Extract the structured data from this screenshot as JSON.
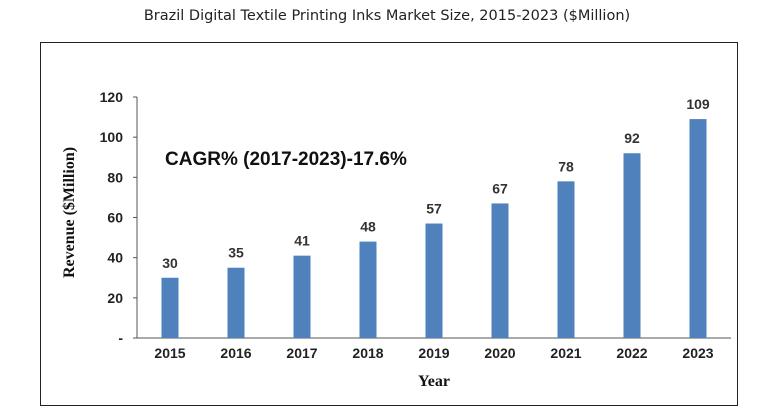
{
  "page": {
    "title": "Brazil Digital Textile Printing Inks Market Size, 2015-2023 ($Million)"
  },
  "chart_data": {
    "type": "bar",
    "title": "Brazil Digital Textile Printing Inks Market Size, 2015-2023 ($Million)",
    "categories": [
      "2015",
      "2016",
      "2017",
      "2018",
      "2019",
      "2020",
      "2021",
      "2022",
      "2023"
    ],
    "values": [
      30,
      35,
      41,
      48,
      57,
      67,
      78,
      92,
      109
    ],
    "xlabel": "Year",
    "ylabel": "Revenue ($Million)",
    "ylim": [
      0,
      120
    ],
    "yticks": [
      "-",
      "20",
      "40",
      "60",
      "80",
      "100",
      "120"
    ],
    "annotation": "CAGR% (2017-2023)-17.6%",
    "bar_color": "#4f81bd",
    "grid": false,
    "legend": "none"
  }
}
